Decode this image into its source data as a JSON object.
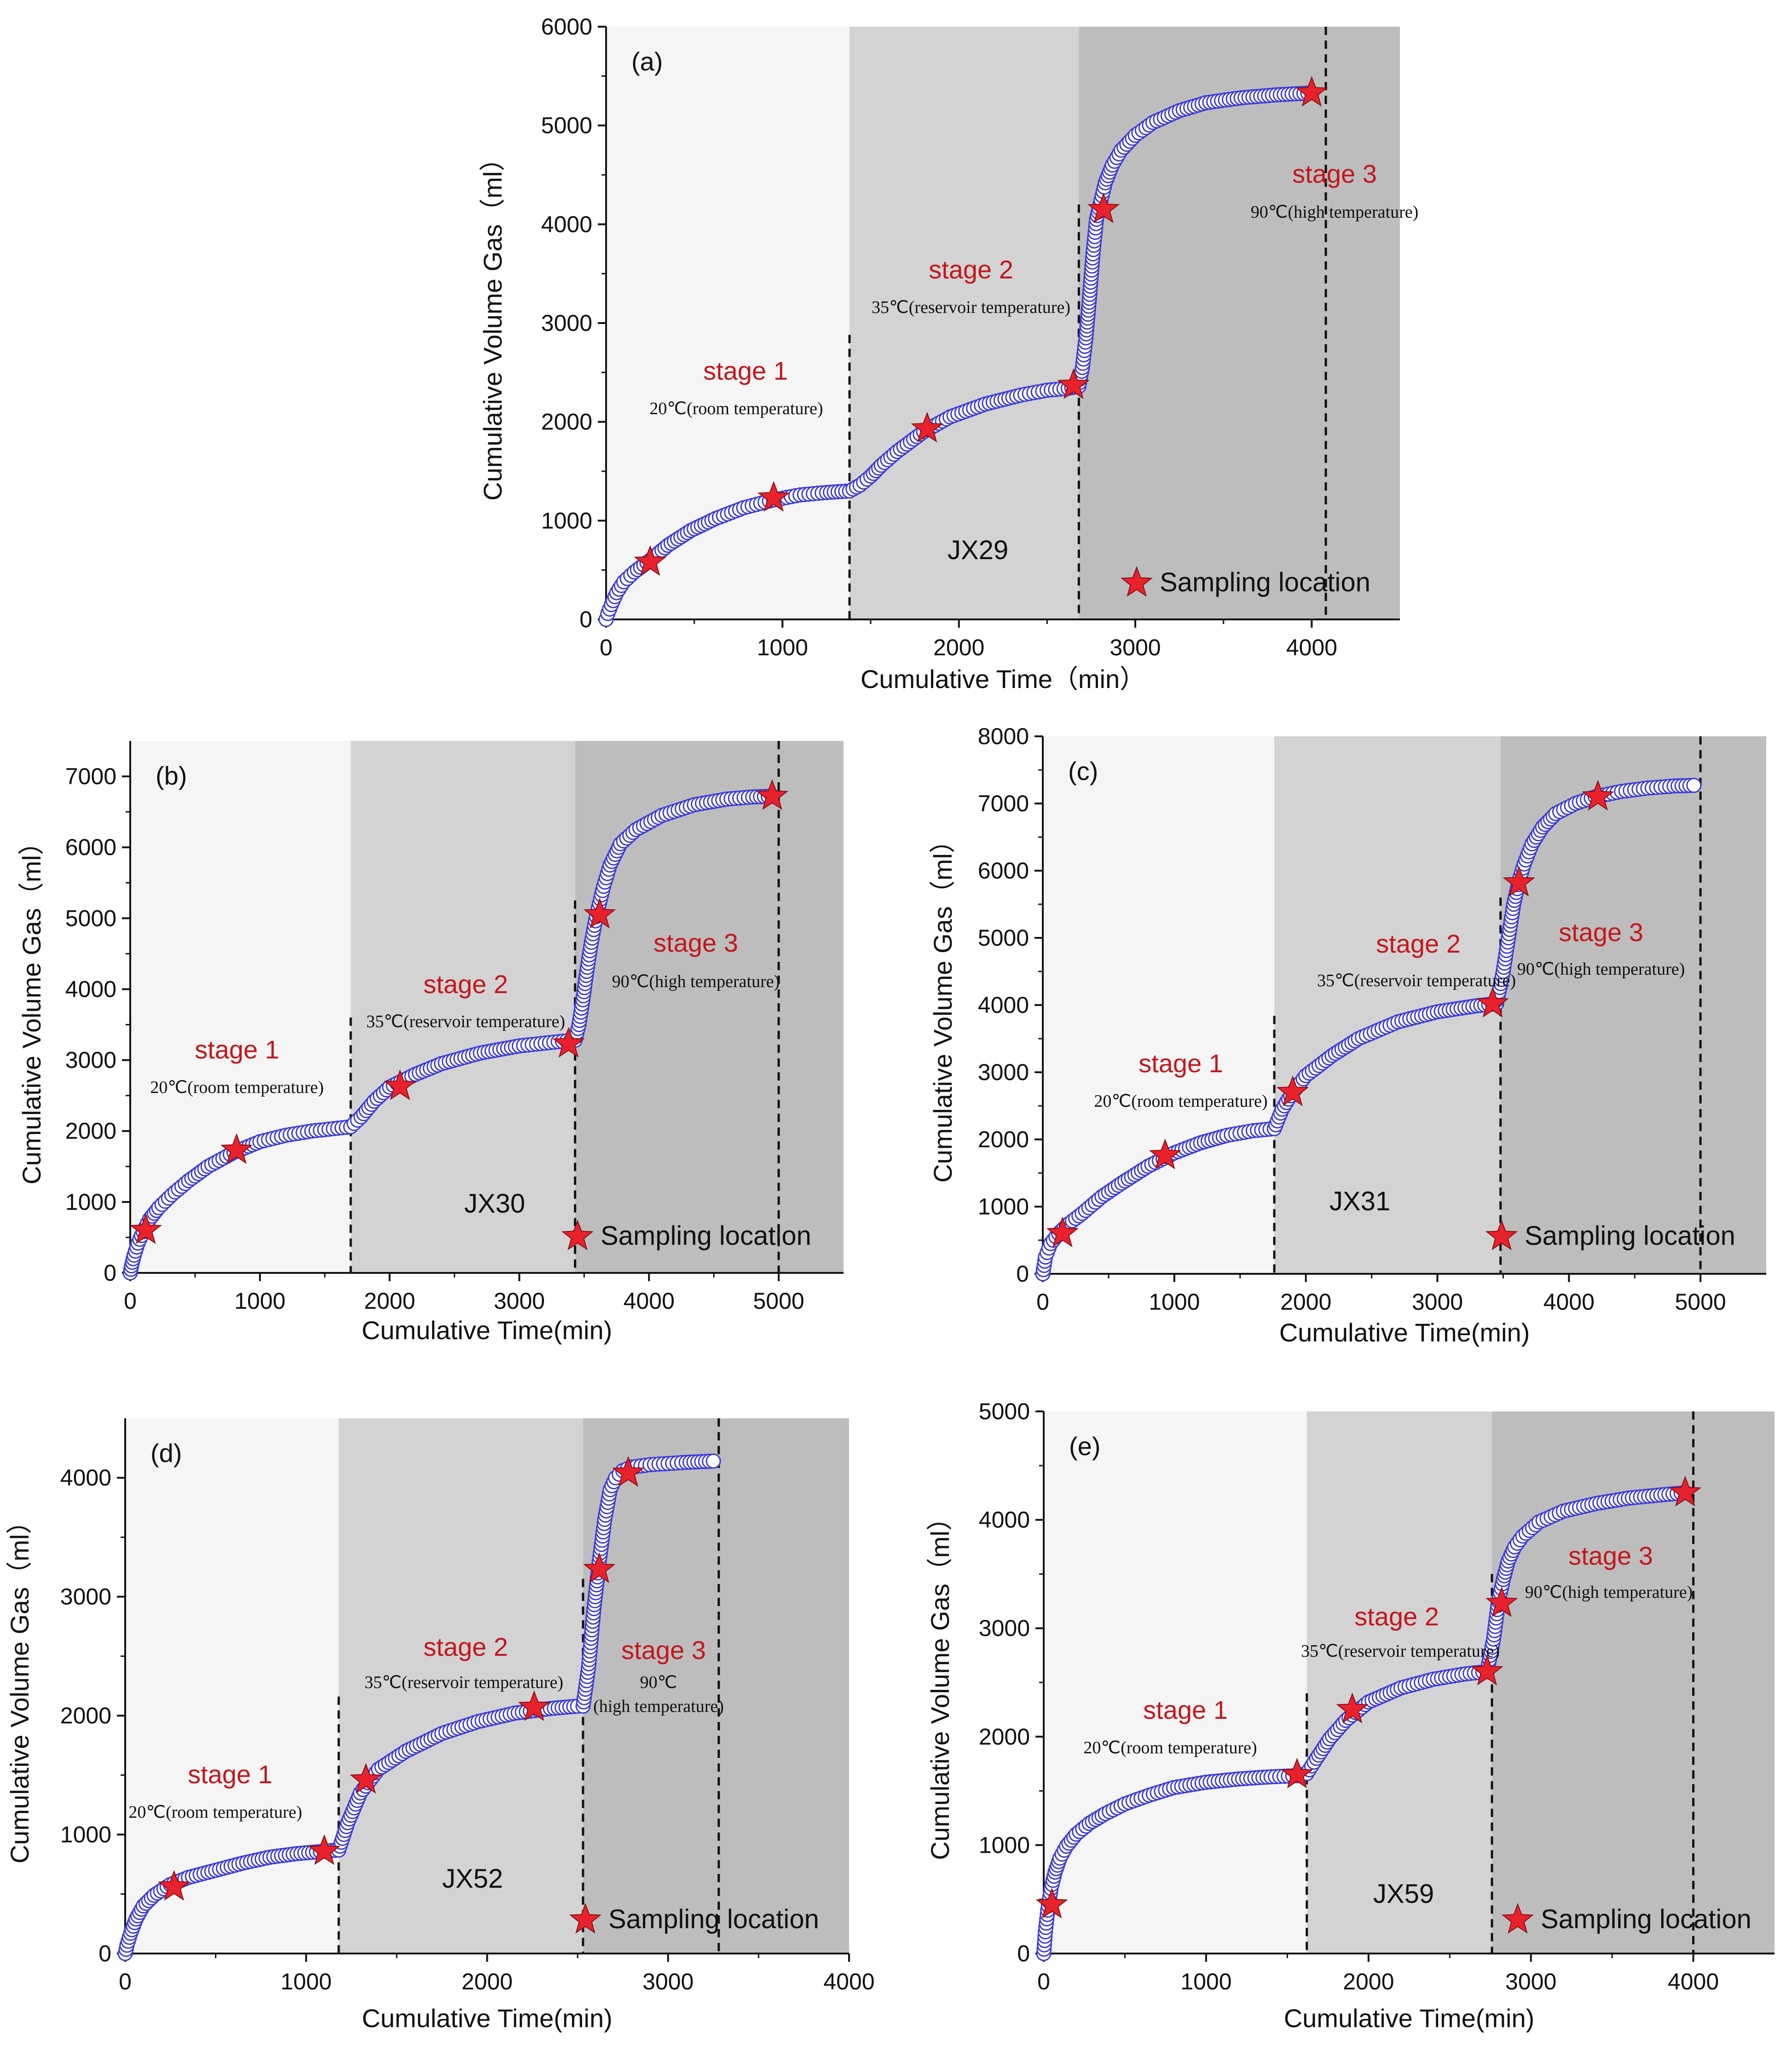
{
  "figure": {
    "legend_label": "Sampling location",
    "colors": {
      "stage1_bg": "#f5f5f5",
      "stage2_bg": "#d3d3d3",
      "stage3_bg": "#bdbdbd",
      "marker_stroke": "#3b3bd6",
      "marker_fill": "#ffffff",
      "star": "#e8222c",
      "stage_label": "#c4161c"
    },
    "marker_icon": "star-icon"
  },
  "chart_data": [
    {
      "panel": "(a)",
      "type": "scatter",
      "sample": "JX29",
      "xlabel": "Cumulative Time（min）",
      "ylabel": "Cumulative Volume Gas（ml）",
      "xlim": [
        0,
        4500
      ],
      "ylim": [
        0,
        6000
      ],
      "xticks": [
        0,
        1000,
        2000,
        3000,
        4000
      ],
      "yticks": [
        0,
        1000,
        2000,
        3000,
        4000,
        5000,
        6000
      ],
      "stage_boundaries": [
        1380,
        2680,
        4080
      ],
      "stages": [
        {
          "label": "stage 1",
          "temperature": "20℃(room temperature)"
        },
        {
          "label": "stage 2",
          "temperature": "35℃(reservoir temperature)"
        },
        {
          "label": "stage 3",
          "temperature": "90℃(high temperature)"
        }
      ],
      "curve": {
        "x": [
          0,
          10,
          30,
          60,
          100,
          160,
          250,
          350,
          480,
          620,
          780,
          950,
          1100,
          1250,
          1380,
          1440,
          1500,
          1560,
          1650,
          1800,
          1950,
          2150,
          2350,
          2500,
          2620,
          2680,
          2700,
          2720,
          2740,
          2760,
          2780,
          2800,
          2830,
          2870,
          2920,
          3000,
          3100,
          3250,
          3400,
          3600,
          3800,
          4000
        ],
        "y": [
          0,
          60,
          150,
          270,
          380,
          480,
          600,
          750,
          900,
          1020,
          1130,
          1210,
          1260,
          1285,
          1300,
          1360,
          1450,
          1560,
          1700,
          1900,
          2050,
          2180,
          2270,
          2320,
          2340,
          2360,
          2550,
          2850,
          3250,
          3700,
          4050,
          4200,
          4420,
          4600,
          4750,
          4900,
          5030,
          5150,
          5230,
          5280,
          5310,
          5330
        ]
      },
      "samples": {
        "x": [
          250,
          950,
          1820,
          2650,
          2820,
          4000
        ],
        "y": [
          580,
          1230,
          1930,
          2370,
          4150,
          5330
        ]
      }
    },
    {
      "panel": "(b)",
      "type": "scatter",
      "sample": "JX30",
      "xlabel": "Cumulative Time(min)",
      "ylabel": "Cumulative Volume Gas（ml）",
      "xlim": [
        0,
        5500
      ],
      "ylim": [
        0,
        7500
      ],
      "xticks": [
        0,
        1000,
        2000,
        3000,
        4000,
        5000
      ],
      "yticks": [
        0,
        1000,
        2000,
        3000,
        4000,
        5000,
        6000,
        7000
      ],
      "stage_boundaries": [
        1700,
        3430,
        5000
      ],
      "stages": [
        {
          "label": "stage 1",
          "temperature": "20℃(room temperature)"
        },
        {
          "label": "stage 2",
          "temperature": "35℃(reservoir temperature)"
        },
        {
          "label": "stage 3",
          "temperature": "90℃(high temperature)"
        }
      ],
      "curve": {
        "x": [
          0,
          10,
          30,
          60,
          100,
          150,
          220,
          320,
          450,
          600,
          800,
          1000,
          1200,
          1400,
          1600,
          1700,
          1780,
          1880,
          2000,
          2200,
          2400,
          2700,
          3000,
          3300,
          3430,
          3460,
          3490,
          3520,
          3550,
          3580,
          3610,
          3650,
          3700,
          3780,
          3900,
          4100,
          4350,
          4600,
          4800,
          4950
        ],
        "y": [
          0,
          100,
          250,
          420,
          580,
          760,
          920,
          1100,
          1300,
          1500,
          1700,
          1850,
          1940,
          2000,
          2040,
          2060,
          2200,
          2420,
          2620,
          2800,
          2950,
          3100,
          3200,
          3260,
          3280,
          3500,
          3850,
          4250,
          4600,
          4900,
          5150,
          5450,
          5750,
          6050,
          6250,
          6450,
          6600,
          6680,
          6710,
          6720
        ]
      },
      "samples": {
        "x": [
          120,
          820,
          2080,
          3380,
          3620,
          4950
        ],
        "y": [
          600,
          1730,
          2630,
          3230,
          5050,
          6720
        ]
      }
    },
    {
      "panel": "(c)",
      "type": "scatter",
      "sample": "JX31",
      "xlabel": "Cumulative Time(min)",
      "ylabel": "Cumulative Volume Gas（ml）",
      "xlim": [
        0,
        5500
      ],
      "ylim": [
        0,
        8000
      ],
      "xticks": [
        0,
        1000,
        2000,
        3000,
        4000,
        5000
      ],
      "yticks": [
        0,
        1000,
        2000,
        3000,
        4000,
        5000,
        6000,
        7000,
        8000
      ],
      "stage_boundaries": [
        1760,
        3480,
        5000
      ],
      "stages": [
        {
          "label": "stage 1",
          "temperature": "20℃(room temperature)"
        },
        {
          "label": "stage 2",
          "temperature": "35℃(reservoir temperature)"
        },
        {
          "label": "stage 3",
          "temperature": "90℃(high temperature)"
        }
      ],
      "curve": {
        "x": [
          0,
          20,
          60,
          120,
          200,
          300,
          450,
          600,
          800,
          1000,
          1200,
          1400,
          1600,
          1760,
          1820,
          1900,
          2000,
          2200,
          2400,
          2700,
          3000,
          3300,
          3450,
          3500,
          3540,
          3580,
          3620,
          3660,
          3720,
          3800,
          3900,
          4050,
          4200,
          4400,
          4600,
          4800,
          4950
        ],
        "y": [
          0,
          250,
          450,
          600,
          750,
          900,
          1150,
          1350,
          1600,
          1800,
          1950,
          2060,
          2130,
          2160,
          2450,
          2700,
          2950,
          3250,
          3500,
          3750,
          3900,
          3990,
          4020,
          4500,
          5000,
          5500,
          5850,
          6100,
          6400,
          6650,
          6850,
          7000,
          7100,
          7180,
          7230,
          7260,
          7270
        ]
      },
      "samples": {
        "x": [
          150,
          930,
          1900,
          3420,
          3620,
          4220
        ],
        "y": [
          600,
          1760,
          2700,
          4020,
          5820,
          7100
        ]
      }
    },
    {
      "panel": "(d)",
      "type": "scatter",
      "sample": "JX52",
      "xlabel": "Cumulative Time(min)",
      "ylabel": "Cumulative Volume Gas（ml）",
      "xlim": [
        0,
        4000
      ],
      "ylim": [
        0,
        4500
      ],
      "xticks": [
        0,
        1000,
        2000,
        3000,
        4000
      ],
      "yticks": [
        0,
        1000,
        2000,
        3000,
        4000
      ],
      "stage_boundaries": [
        1180,
        2530,
        3280
      ],
      "stages": [
        {
          "label": "stage 1",
          "temperature": "20℃(room temperature)"
        },
        {
          "label": "stage 2",
          "temperature": "35℃(reservoir temperature)"
        },
        {
          "label": "stage 3",
          "temperature": "90℃(high temperature)"
        }
      ],
      "curve": {
        "x": [
          0,
          10,
          30,
          60,
          100,
          160,
          250,
          350,
          500,
          650,
          800,
          950,
          1100,
          1180,
          1230,
          1300,
          1400,
          1550,
          1750,
          1950,
          2150,
          2350,
          2500,
          2530,
          2560,
          2590,
          2620,
          2650,
          2680,
          2710,
          2750,
          2800,
          2900,
          3000,
          3100,
          3250
        ],
        "y": [
          0,
          70,
          170,
          290,
          400,
          490,
          580,
          640,
          700,
          760,
          810,
          840,
          860,
          870,
          1100,
          1350,
          1550,
          1700,
          1850,
          1950,
          2020,
          2060,
          2080,
          2080,
          2400,
          2900,
          3300,
          3650,
          3900,
          4000,
          4060,
          4090,
          4110,
          4120,
          4130,
          4140
        ]
      },
      "samples": {
        "x": [
          270,
          1100,
          1330,
          2260,
          2620,
          2780
        ],
        "y": [
          560,
          860,
          1460,
          2070,
          3230,
          4040
        ]
      }
    },
    {
      "panel": "(e)",
      "type": "scatter",
      "sample": "JX59",
      "xlabel": "Cumulative Time(min)",
      "ylabel": "Cumulative Volume Gas（ml）",
      "xlim": [
        0,
        4500
      ],
      "ylim": [
        0,
        5000
      ],
      "xticks": [
        0,
        1000,
        2000,
        3000,
        4000
      ],
      "yticks": [
        0,
        1000,
        2000,
        3000,
        4000,
        5000
      ],
      "stage_boundaries": [
        1620,
        2760,
        4000
      ],
      "stages": [
        {
          "label": "stage 1",
          "temperature": "20℃(room temperature)"
        },
        {
          "label": "stage 2",
          "temperature": "35℃(reservoir temperature)"
        },
        {
          "label": "stage 3",
          "temperature": "90℃(high temperature)"
        }
      ],
      "curve": {
        "x": [
          0,
          10,
          25,
          45,
          70,
          100,
          140,
          200,
          280,
          380,
          500,
          650,
          800,
          1000,
          1200,
          1400,
          1560,
          1620,
          1680,
          1760,
          1860,
          2000,
          2200,
          2400,
          2600,
          2730,
          2770,
          2800,
          2830,
          2860,
          2900,
          2950,
          3050,
          3200,
          3400,
          3600,
          3800,
          3950
        ],
        "y": [
          0,
          200,
          400,
          600,
          750,
          880,
          990,
          1100,
          1200,
          1290,
          1380,
          1460,
          1530,
          1580,
          1610,
          1630,
          1640,
          1660,
          1800,
          1980,
          2150,
          2320,
          2450,
          2530,
          2580,
          2600,
          2900,
          3250,
          3450,
          3620,
          3750,
          3850,
          3980,
          4080,
          4150,
          4200,
          4230,
          4250
        ]
      },
      "samples": {
        "x": [
          50,
          1560,
          1900,
          2730,
          2820,
          3950
        ],
        "y": [
          450,
          1650,
          2250,
          2600,
          3230,
          4250
        ]
      }
    }
  ]
}
